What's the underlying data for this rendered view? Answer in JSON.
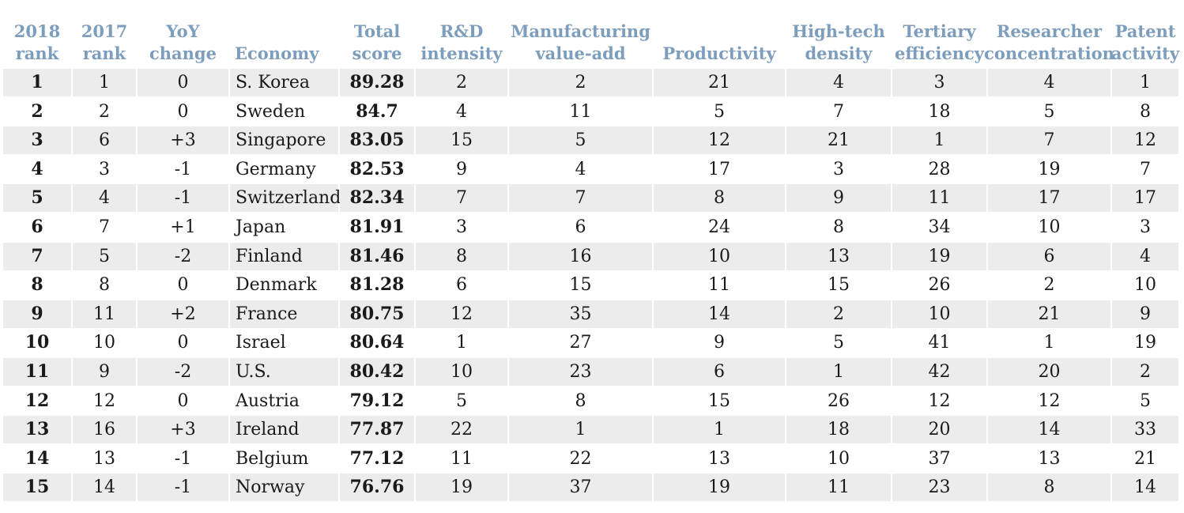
{
  "chart_data": {
    "type": "table",
    "columns": [
      "2018\nrank",
      "2017\nrank",
      "YoY\nchange",
      "Economy",
      "Total\nscore",
      "R&D\nintensity",
      "Manufacturing\nvalue-add",
      "Productivity",
      "High-tech\ndensity",
      "Tertiary\nefficiency",
      "Researcher\nconcentration",
      "Patent\nactivity"
    ],
    "rows": [
      [
        "1",
        "1",
        "0",
        "S. Korea",
        "89.28",
        "2",
        "2",
        "21",
        "4",
        "3",
        "4",
        "1"
      ],
      [
        "2",
        "2",
        "0",
        "Sweden",
        "84.7",
        "4",
        "11",
        "5",
        "7",
        "18",
        "5",
        "8"
      ],
      [
        "3",
        "6",
        "+3",
        "Singapore",
        "83.05",
        "15",
        "5",
        "12",
        "21",
        "1",
        "7",
        "12"
      ],
      [
        "4",
        "3",
        "-1",
        "Germany",
        "82.53",
        "9",
        "4",
        "17",
        "3",
        "28",
        "19",
        "7"
      ],
      [
        "5",
        "4",
        "-1",
        "Switzerland",
        "82.34",
        "7",
        "7",
        "8",
        "9",
        "11",
        "17",
        "17"
      ],
      [
        "6",
        "7",
        "+1",
        "Japan",
        "81.91",
        "3",
        "6",
        "24",
        "8",
        "34",
        "10",
        "3"
      ],
      [
        "7",
        "5",
        "-2",
        "Finland",
        "81.46",
        "8",
        "16",
        "10",
        "13",
        "19",
        "6",
        "4"
      ],
      [
        "8",
        "8",
        "0",
        "Denmark",
        "81.28",
        "6",
        "15",
        "11",
        "15",
        "26",
        "2",
        "10"
      ],
      [
        "9",
        "11",
        "+2",
        "France",
        "80.75",
        "12",
        "35",
        "14",
        "2",
        "10",
        "21",
        "9"
      ],
      [
        "10",
        "10",
        "0",
        "Israel",
        "80.64",
        "1",
        "27",
        "9",
        "5",
        "41",
        "1",
        "19"
      ],
      [
        "11",
        "9",
        "-2",
        "U.S.",
        "80.42",
        "10",
        "23",
        "6",
        "1",
        "42",
        "20",
        "2"
      ],
      [
        "12",
        "12",
        "0",
        "Austria",
        "79.12",
        "5",
        "8",
        "15",
        "26",
        "12",
        "12",
        "5"
      ],
      [
        "13",
        "16",
        "+3",
        "Ireland",
        "77.87",
        "22",
        "1",
        "1",
        "18",
        "20",
        "14",
        "33"
      ],
      [
        "14",
        "13",
        "-1",
        "Belgium",
        "77.12",
        "11",
        "22",
        "13",
        "10",
        "37",
        "13",
        "21"
      ],
      [
        "15",
        "14",
        "-1",
        "Norway",
        "76.76",
        "19",
        "37",
        "19",
        "11",
        "23",
        "8",
        "14"
      ]
    ],
    "colors": {
      "header": "#7d9dbd",
      "row_shade": "#ececec",
      "text": "#1a1a1a"
    }
  }
}
